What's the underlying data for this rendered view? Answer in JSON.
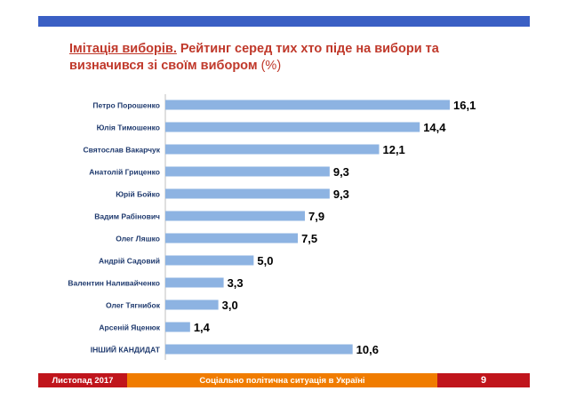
{
  "header": {
    "title_underlined": "Імітація виборів.",
    "title_rest": " Рейтинг серед тих хто піде на вибори та визначився зі своїм вибором",
    "title_unit": " (%)"
  },
  "footer": {
    "date": "Листопад 2017",
    "subtitle": "Соціально політична ситуація в Україні",
    "page_number": "9"
  },
  "colors": {
    "bar": "#8db3e2",
    "band": "#3a5fc4",
    "title": "#c0392b",
    "footer_red": "#c0151c",
    "footer_orange": "#f07c00"
  },
  "chart_data": {
    "type": "bar",
    "orientation": "horizontal",
    "categories": [
      "Петро Порошенко",
      "Юлія Тимошенко",
      "Святослав Вакарчук",
      "Анатолій Гриценко",
      "Юрій Бойко",
      "Вадим Рабінович",
      "Олег Ляшко",
      "Андрій Садовий",
      "Валентин Наливайченко",
      "Олег Тягнибок",
      "Арсеній Яценюк",
      "ІНШИЙ КАНДИДАТ"
    ],
    "values": [
      16.1,
      14.4,
      12.1,
      9.3,
      9.3,
      7.9,
      7.5,
      5.0,
      3.3,
      3.0,
      1.4,
      10.6
    ],
    "value_labels": [
      "16,1",
      "14,4",
      "12,1",
      "9,3",
      "9,3",
      "7,9",
      "7,5",
      "5,0",
      "3,3",
      "3,0",
      "1,4",
      "10,6"
    ],
    "grid": false,
    "legend": "none"
  }
}
